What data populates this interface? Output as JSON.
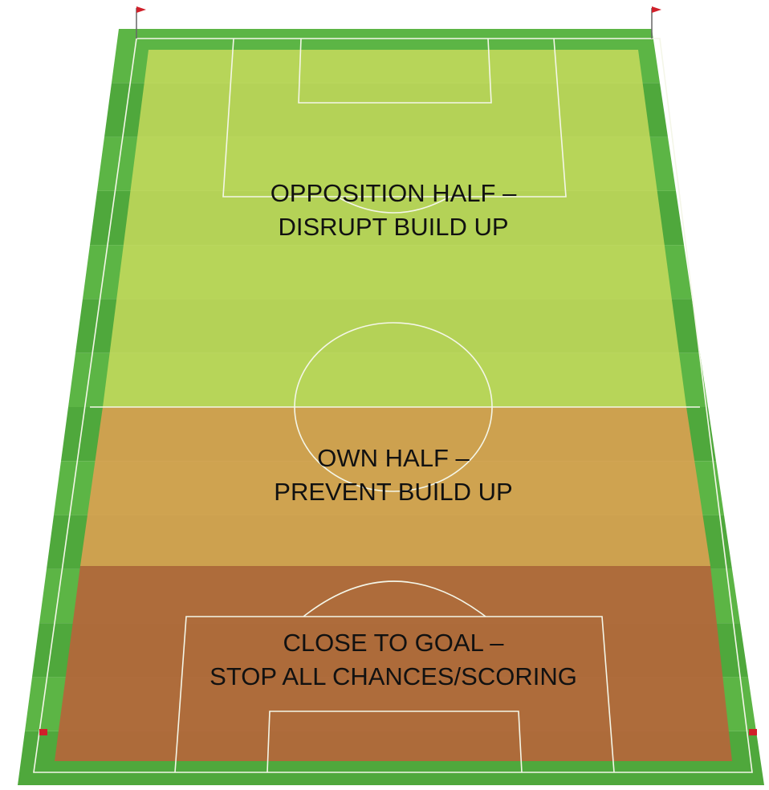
{
  "zones": [
    {
      "lines": [
        "OPPOSITION HALF –",
        "DISRUPT BUILD UP"
      ]
    },
    {
      "lines": [
        "OWN HALF –",
        "PREVENT BUILD UP"
      ]
    },
    {
      "lines": [
        "CLOSE TO GOAL –",
        "STOP ALL CHANCES/SCORING"
      ]
    }
  ]
}
